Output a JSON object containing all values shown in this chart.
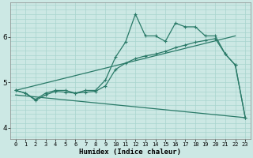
{
  "xlabel": "Humidex (Indice chaleur)",
  "bg_color": "#cce8e4",
  "line_color": "#2a7a68",
  "grid_color": "#a8d4ce",
  "xlim": [
    -0.5,
    23.5
  ],
  "ylim": [
    3.75,
    6.75
  ],
  "yticks": [
    4,
    5,
    6
  ],
  "xticks": [
    0,
    1,
    2,
    3,
    4,
    5,
    6,
    7,
    8,
    9,
    10,
    11,
    12,
    13,
    14,
    15,
    16,
    17,
    18,
    19,
    20,
    21,
    22,
    23
  ],
  "line1_x": [
    0,
    1,
    2,
    3,
    4,
    5,
    6,
    7,
    8,
    9,
    10,
    11,
    12,
    13,
    14,
    15,
    16,
    17,
    18,
    19,
    20,
    21,
    22,
    23
  ],
  "line1_y": [
    4.82,
    4.76,
    4.62,
    4.76,
    4.82,
    4.82,
    4.76,
    4.82,
    4.82,
    5.05,
    5.55,
    5.88,
    6.5,
    6.02,
    6.02,
    5.9,
    6.3,
    6.22,
    6.22,
    6.02,
    6.02,
    5.62,
    5.38,
    4.22
  ],
  "line2_x": [
    0,
    1,
    2,
    3,
    4,
    5,
    6,
    7,
    8,
    9,
    10,
    11,
    12,
    13,
    14,
    15,
    16,
    17,
    18,
    19,
    20,
    21,
    22,
    23
  ],
  "line2_y": [
    4.82,
    4.76,
    4.6,
    4.72,
    4.8,
    4.78,
    4.76,
    4.78,
    4.8,
    4.92,
    5.28,
    5.42,
    5.52,
    5.58,
    5.62,
    5.68,
    5.76,
    5.82,
    5.88,
    5.92,
    5.96,
    5.62,
    5.38,
    4.22
  ],
  "line3_x": [
    0,
    22
  ],
  "line3_y": [
    4.82,
    6.02
  ],
  "line4_x": [
    0,
    23
  ],
  "line4_y": [
    4.72,
    4.22
  ]
}
